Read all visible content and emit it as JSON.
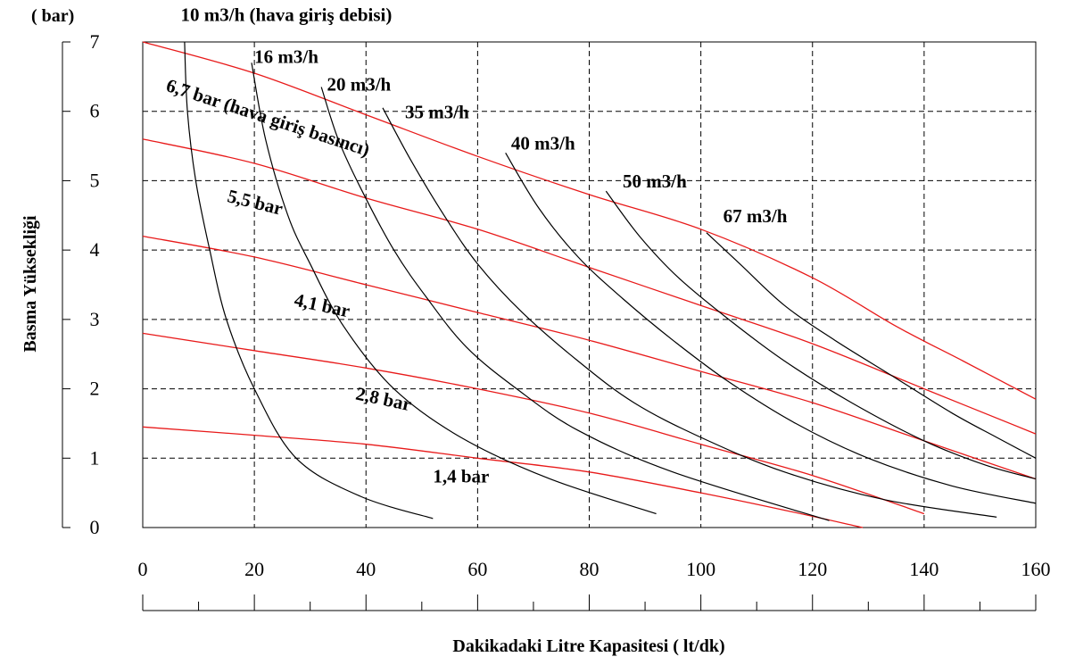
{
  "chart_data": {
    "type": "line",
    "ylabel": "Basma Yüksekliği",
    "yunit": "( bar)",
    "xlabel": "Dakikadaki Litre Kapasitesi ( lt/dk)",
    "xlim": [
      0,
      160
    ],
    "ylim": [
      0,
      7
    ],
    "xticks": [
      "0",
      "20",
      "40",
      "60",
      "80",
      "100",
      "120",
      "140",
      "160"
    ],
    "yticks": [
      "0",
      "1",
      "2",
      "3",
      "4",
      "5",
      "6",
      "7"
    ],
    "grid": true,
    "legend": "none",
    "colors": {
      "flow": "#000000",
      "pressure": "#e81a1a"
    },
    "flow_series": [
      {
        "label": "10 m3/h (hava giriş debisi)",
        "label_at": [
          6.8,
          7.3
        ],
        "points": [
          [
            7.5,
            7
          ],
          [
            8,
            6
          ],
          [
            9.5,
            5
          ],
          [
            12,
            4
          ],
          [
            15,
            3
          ],
          [
            20,
            2
          ],
          [
            27.5,
            1
          ],
          [
            39,
            0.45
          ],
          [
            52,
            0.13
          ]
        ]
      },
      {
        "label": "16 m3/h",
        "label_at": [
          20,
          6.7
        ],
        "points": [
          [
            19.5,
            6.7
          ],
          [
            22,
            5.6
          ],
          [
            26,
            4.5
          ],
          [
            30,
            3.8
          ],
          [
            36,
            2.9
          ],
          [
            45,
            2
          ],
          [
            57,
            1.3
          ],
          [
            73,
            0.7
          ],
          [
            92,
            0.2
          ]
        ]
      },
      {
        "label": "20 m3/h",
        "label_at": [
          33,
          6.3
        ],
        "points": [
          [
            32,
            6.35
          ],
          [
            35,
            5.6
          ],
          [
            39,
            4.9
          ],
          [
            45,
            4
          ],
          [
            51,
            3.3
          ],
          [
            58,
            2.6
          ],
          [
            67,
            2
          ],
          [
            78,
            1.4
          ],
          [
            95,
            0.8
          ],
          [
            123,
            0.1
          ]
        ]
      },
      {
        "label": "35 m3/h",
        "label_at": [
          47,
          5.9
        ],
        "points": [
          [
            43,
            6.05
          ],
          [
            48,
            5.3
          ],
          [
            54,
            4.5
          ],
          [
            60,
            3.8
          ],
          [
            68,
            3.1
          ],
          [
            78,
            2.4
          ],
          [
            88,
            1.8
          ],
          [
            100,
            1.3
          ],
          [
            115,
            0.8
          ],
          [
            133,
            0.4
          ],
          [
            153,
            0.15
          ]
        ]
      },
      {
        "label": "40 m3/h",
        "label_at": [
          66,
          5.45
        ],
        "points": [
          [
            65,
            5.4
          ],
          [
            71,
            4.6
          ],
          [
            78,
            3.9
          ],
          [
            86,
            3.3
          ],
          [
            95,
            2.7
          ],
          [
            105,
            2.1
          ],
          [
            117,
            1.5
          ],
          [
            130,
            1
          ],
          [
            145,
            0.6
          ],
          [
            160,
            0.35
          ]
        ]
      },
      {
        "label": "50 m3/h",
        "label_at": [
          86,
          4.9
        ],
        "points": [
          [
            83,
            4.85
          ],
          [
            89,
            4.2
          ],
          [
            96,
            3.6
          ],
          [
            105,
            3
          ],
          [
            115,
            2.4
          ],
          [
            127,
            1.8
          ],
          [
            140,
            1.25
          ],
          [
            151,
            0.9
          ],
          [
            160,
            0.7
          ]
        ]
      },
      {
        "label": "67 m3/h",
        "label_at": [
          104,
          4.4
        ],
        "points": [
          [
            101,
            4.25
          ],
          [
            107,
            3.8
          ],
          [
            115,
            3.2
          ],
          [
            124,
            2.7
          ],
          [
            134,
            2.2
          ],
          [
            145,
            1.65
          ],
          [
            153,
            1.3
          ],
          [
            160,
            1
          ]
        ]
      }
    ],
    "pressure_series": [
      {
        "label": "6,7 bar (hava giriş basıncı)",
        "label_at": [
          4,
          6.3
        ],
        "rotate": 18,
        "points": [
          [
            0,
            7
          ],
          [
            20,
            6.55
          ],
          [
            40,
            5.95
          ],
          [
            60,
            5.35
          ],
          [
            80,
            4.8
          ],
          [
            100,
            4.3
          ],
          [
            120,
            3.6
          ],
          [
            135,
            2.9
          ],
          [
            147,
            2.4
          ],
          [
            160,
            1.85
          ]
        ]
      },
      {
        "label": "5,5 bar",
        "label_at": [
          15,
          4.7
        ],
        "rotate": 14,
        "points": [
          [
            0,
            5.6
          ],
          [
            20,
            5.25
          ],
          [
            40,
            4.75
          ],
          [
            60,
            4.3
          ],
          [
            80,
            3.75
          ],
          [
            100,
            3.2
          ],
          [
            120,
            2.65
          ],
          [
            140,
            2
          ],
          [
            160,
            1.35
          ]
        ]
      },
      {
        "label": "4,1 bar",
        "label_at": [
          27,
          3.2
        ],
        "rotate": 12,
        "points": [
          [
            0,
            4.2
          ],
          [
            20,
            3.9
          ],
          [
            40,
            3.5
          ],
          [
            60,
            3.1
          ],
          [
            80,
            2.7
          ],
          [
            100,
            2.25
          ],
          [
            120,
            1.8
          ],
          [
            140,
            1.25
          ],
          [
            160,
            0.7
          ]
        ]
      },
      {
        "label": "2,8 bar",
        "label_at": [
          38,
          1.85
        ],
        "rotate": 12,
        "points": [
          [
            0,
            2.8
          ],
          [
            20,
            2.55
          ],
          [
            40,
            2.3
          ],
          [
            60,
            2
          ],
          [
            80,
            1.65
          ],
          [
            100,
            1.2
          ],
          [
            120,
            0.75
          ],
          [
            140,
            0.2
          ]
        ]
      },
      {
        "label": "1,4 bar",
        "label_at": [
          52,
          0.65
        ],
        "rotate": 0,
        "points": [
          [
            0,
            1.45
          ],
          [
            20,
            1.33
          ],
          [
            40,
            1.2
          ],
          [
            60,
            1
          ],
          [
            80,
            0.8
          ],
          [
            100,
            0.5
          ],
          [
            115,
            0.25
          ],
          [
            129,
            0
          ]
        ]
      }
    ]
  }
}
